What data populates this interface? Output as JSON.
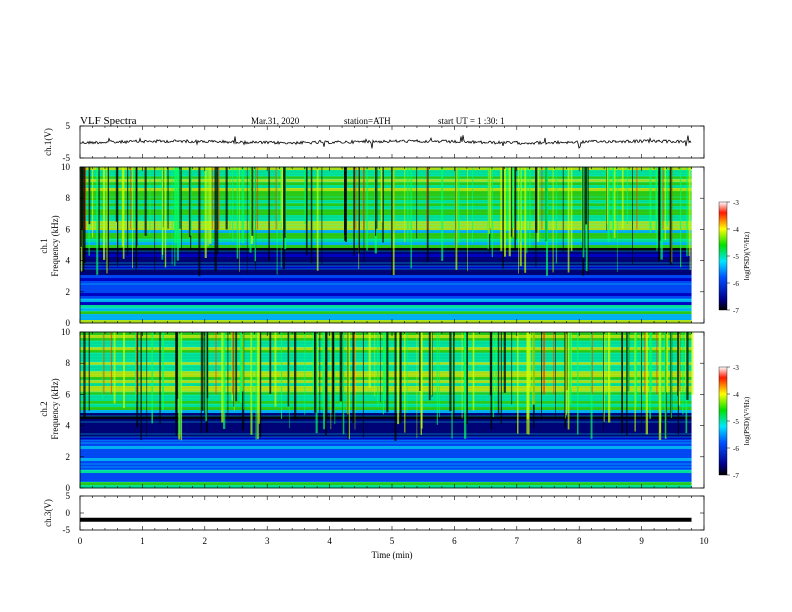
{
  "header": {
    "title": "VLF Spectra",
    "date": "Mar.31, 2020",
    "station": "station=ATH",
    "start": "start UT = 1 :30: 1"
  },
  "chart_data": [
    {
      "type": "line",
      "title": "",
      "ylabel": "ch.1(V)",
      "xlabel": "",
      "xlim": [
        0,
        10
      ],
      "ylim": [
        -5,
        5
      ],
      "y_ticks": [
        "5",
        "-5"
      ],
      "baseline": 0,
      "grid": false
    },
    {
      "type": "heatmap",
      "ylabel": "ch.1 Frequency (kHz)",
      "xlim": [
        0,
        10
      ],
      "ylim": [
        0,
        10
      ],
      "y_ticks": [
        "0",
        "2",
        "4",
        "6",
        "8",
        "10"
      ],
      "data_extent_min": 9.8,
      "colorbar": {
        "label": "log(PSD)(V²/Hz)",
        "range": [
          -7,
          -3
        ],
        "ticks": [
          "-3",
          "-4",
          "-5",
          "-6",
          "-7"
        ]
      }
    },
    {
      "type": "heatmap",
      "ylabel": "ch.2 Frequency (kHz)",
      "xlim": [
        0,
        10
      ],
      "ylim": [
        0,
        10
      ],
      "y_ticks": [
        "0",
        "2",
        "4",
        "6",
        "8",
        "10"
      ],
      "data_extent_min": 9.8,
      "colorbar": {
        "label": "log(PSD)(V²/Hz)",
        "range": [
          -7,
          -3
        ],
        "ticks": [
          "-3",
          "-4",
          "-5",
          "-6",
          "-7"
        ]
      }
    },
    {
      "type": "line",
      "ylabel": "ch.3(V)",
      "xlabel": "Time (min)",
      "xlim": [
        0,
        10
      ],
      "ylim": [
        -5,
        5
      ],
      "y_ticks": [
        "5",
        "0",
        "-5"
      ],
      "x_ticks": [
        "0",
        "1",
        "2",
        "3",
        "4",
        "5",
        "6",
        "7",
        "8",
        "9",
        "10"
      ],
      "baseline": -2,
      "grid": false
    }
  ]
}
